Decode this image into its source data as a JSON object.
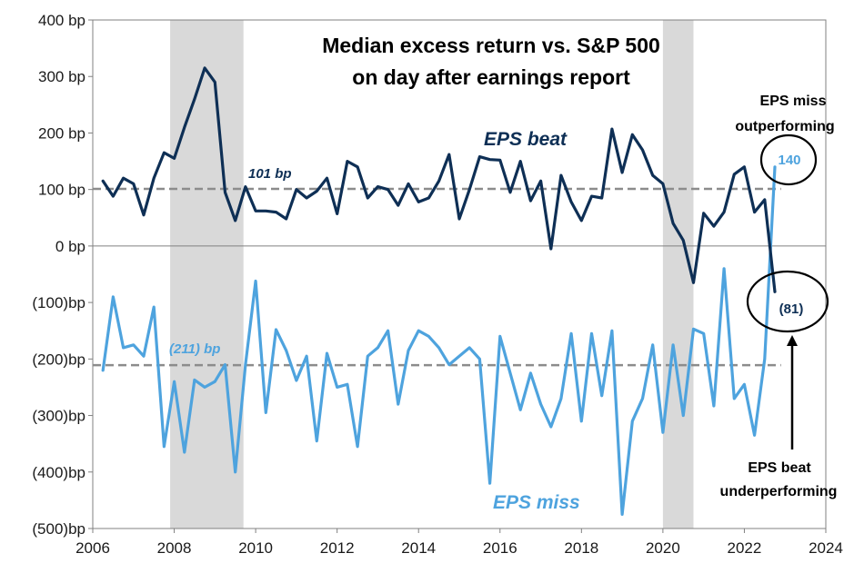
{
  "chart_data": {
    "type": "line",
    "title_lines": [
      "Median excess return vs. S&P 500",
      "on day after earnings report"
    ],
    "xlabel": "",
    "ylabel": "",
    "xlim": [
      2006,
      2024
    ],
    "ylim": [
      -500,
      400
    ],
    "x_ticks": [
      {
        "value": 2006,
        "label": "2006"
      },
      {
        "value": 2008,
        "label": "2008"
      },
      {
        "value": 2010,
        "label": "2010"
      },
      {
        "value": 2012,
        "label": "2012"
      },
      {
        "value": 2014,
        "label": "2014"
      },
      {
        "value": 2016,
        "label": "2016"
      },
      {
        "value": 2018,
        "label": "2018"
      },
      {
        "value": 2020,
        "label": "2020"
      },
      {
        "value": 2022,
        "label": "2022"
      },
      {
        "value": 2024,
        "label": "2024"
      }
    ],
    "y_ticks": [
      {
        "value": 400,
        "label": "400 bp"
      },
      {
        "value": 300,
        "label": "300 bp"
      },
      {
        "value": 200,
        "label": "200 bp"
      },
      {
        "value": 100,
        "label": "100 bp"
      },
      {
        "value": 0,
        "label": "0 bp"
      },
      {
        "value": -100,
        "label": "(100)bp"
      },
      {
        "value": -200,
        "label": "(200)bp"
      },
      {
        "value": -300,
        "label": "(300)bp"
      },
      {
        "value": -400,
        "label": "(400)bp"
      },
      {
        "value": -500,
        "label": "(500)bp"
      }
    ],
    "recessions": [
      {
        "start": 2007.9,
        "end": 2009.7
      },
      {
        "start": 2020.0,
        "end": 2020.75
      }
    ],
    "series": [
      {
        "name": "EPS beat",
        "label": "EPS beat",
        "color": "#0e2f55",
        "average": 101,
        "average_label": "101 bp",
        "end_label": "(81)",
        "x": [
          2006.25,
          2006.5,
          2006.75,
          2007,
          2007.25,
          2007.5,
          2007.75,
          2008,
          2008.25,
          2008.5,
          2008.75,
          2009,
          2009.25,
          2009.5,
          2009.75,
          2010,
          2010.25,
          2010.5,
          2010.75,
          2011,
          2011.25,
          2011.5,
          2011.75,
          2012,
          2012.25,
          2012.5,
          2012.75,
          2013,
          2013.25,
          2013.5,
          2013.75,
          2014,
          2014.25,
          2014.5,
          2014.75,
          2015,
          2015.25,
          2015.5,
          2015.75,
          2016,
          2016.25,
          2016.5,
          2016.75,
          2017,
          2017.25,
          2017.5,
          2017.75,
          2018,
          2018.25,
          2018.5,
          2018.75,
          2019,
          2019.25,
          2019.5,
          2019.75,
          2020,
          2020.25,
          2020.5,
          2020.75,
          2021,
          2021.25,
          2021.5,
          2021.75,
          2022,
          2022.25,
          2022.5,
          2022.75
        ],
        "values": [
          115,
          88,
          120,
          110,
          55,
          120,
          165,
          155,
          210,
          260,
          315,
          290,
          95,
          45,
          105,
          62,
          62,
          60,
          48,
          100,
          85,
          97,
          120,
          57,
          150,
          140,
          85,
          105,
          100,
          72,
          110,
          78,
          85,
          115,
          162,
          48,
          100,
          158,
          153,
          152,
          95,
          150,
          80,
          115,
          -5,
          125,
          78,
          45,
          88,
          85,
          207,
          130,
          197,
          170,
          125,
          110,
          40,
          10,
          -65,
          58,
          35,
          60,
          127,
          140,
          60,
          82,
          -81
        ]
      },
      {
        "name": "EPS miss",
        "label": "EPS miss",
        "color": "#4ea3de",
        "average": -211,
        "average_label": "(211) bp",
        "end_label": "140",
        "x": [
          2006.25,
          2006.5,
          2006.75,
          2007,
          2007.25,
          2007.5,
          2007.75,
          2008,
          2008.25,
          2008.5,
          2008.75,
          2009,
          2009.25,
          2009.5,
          2009.75,
          2010,
          2010.25,
          2010.5,
          2010.75,
          2011,
          2011.25,
          2011.5,
          2011.75,
          2012,
          2012.25,
          2012.5,
          2012.75,
          2013,
          2013.25,
          2013.5,
          2013.75,
          2014,
          2014.25,
          2014.5,
          2014.75,
          2015,
          2015.25,
          2015.5,
          2015.75,
          2016,
          2016.25,
          2016.5,
          2016.75,
          2017,
          2017.25,
          2017.5,
          2017.75,
          2018,
          2018.25,
          2018.5,
          2018.75,
          2019,
          2019.25,
          2019.5,
          2019.75,
          2020,
          2020.25,
          2020.5,
          2020.75,
          2021,
          2021.25,
          2021.5,
          2021.75,
          2022,
          2022.25,
          2022.5,
          2022.75
        ],
        "values": [
          -220,
          -90,
          -180,
          -175,
          -195,
          -108,
          -355,
          -240,
          -365,
          -237,
          -250,
          -240,
          -210,
          -400,
          -210,
          -62,
          -295,
          -148,
          -185,
          -238,
          -195,
          -345,
          -190,
          -250,
          -245,
          -355,
          -195,
          -180,
          -150,
          -280,
          -185,
          -150,
          -160,
          -180,
          -210,
          -195,
          -180,
          -200,
          -420,
          -160,
          -225,
          -290,
          -225,
          -280,
          -320,
          -270,
          -155,
          -310,
          -155,
          -265,
          -150,
          -475,
          -310,
          -270,
          -175,
          -330,
          -175,
          -300,
          -147,
          -155,
          -283,
          -40,
          -270,
          -245,
          -335,
          -200,
          140
        ]
      }
    ],
    "annotations": [
      {
        "text": [
          "EPS miss",
          "outperforming"
        ]
      },
      {
        "text": [
          "EPS beat",
          "underperforming"
        ]
      }
    ],
    "grid": false
  }
}
